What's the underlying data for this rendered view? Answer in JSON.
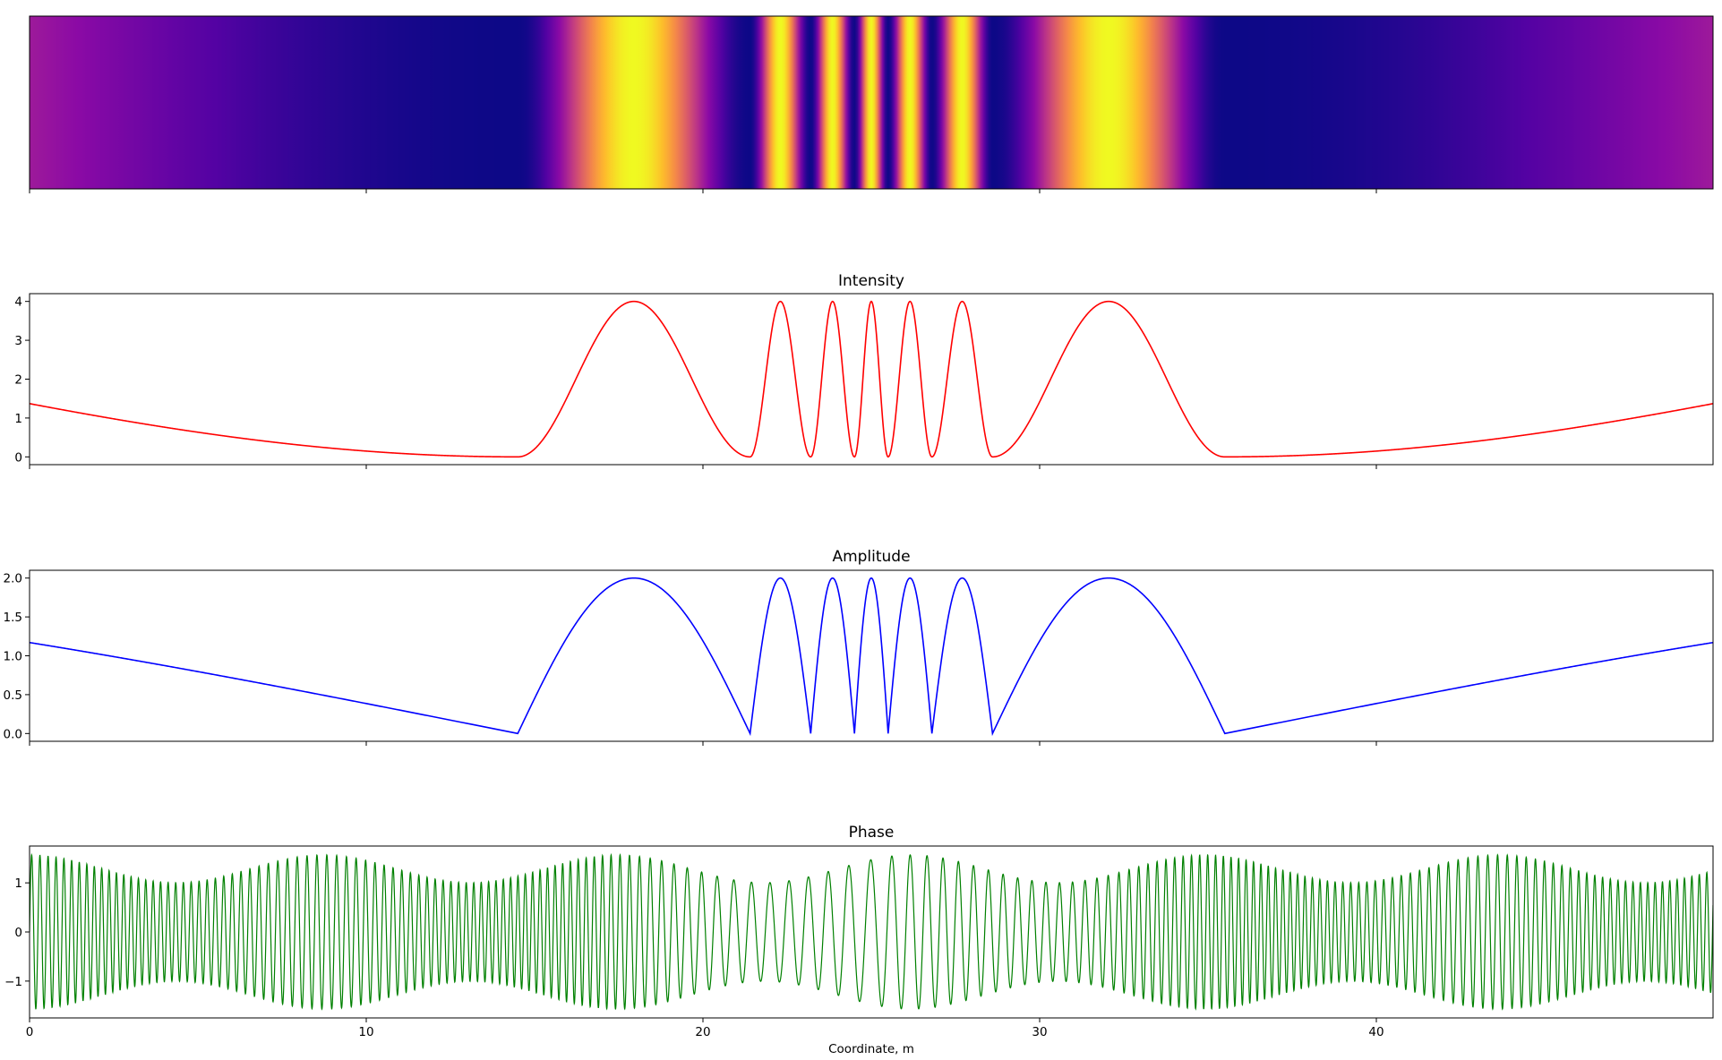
{
  "chart_data": [
    {
      "type": "heatmap",
      "title": "",
      "colormap": "plasma",
      "x_range": [
        0,
        50
      ],
      "description_of_values": "normalized intensity I/4 along x; mapped through plasma colormap",
      "x_ticks": [
        0,
        10,
        20,
        30,
        40
      ],
      "show_tick_labels": false
    },
    {
      "type": "line",
      "title": "Intensity",
      "color": "#ff0000",
      "xlim": [
        0,
        50
      ],
      "ylim": [
        -0.2,
        4.2
      ],
      "y_ticks": [
        0,
        1,
        2,
        3,
        4
      ],
      "x_ticks": [
        0,
        10,
        20,
        30,
        40
      ],
      "show_x_tick_labels": false,
      "peaks_x": [
        19.6,
        22.5,
        23.9,
        25.0,
        26.1,
        27.5,
        30.4
      ],
      "zeros_x": [
        14.5,
        21.4,
        23.2,
        24.5,
        25.5,
        26.8,
        28.6,
        35.5
      ],
      "y_at_edges": 1.37
    },
    {
      "type": "line",
      "title": "Amplitude",
      "color": "#0000ff",
      "xlim": [
        0,
        50
      ],
      "ylim": [
        -0.1,
        2.1
      ],
      "y_ticks": [
        0.0,
        0.5,
        1.0,
        1.5,
        2.0
      ],
      "y_tick_labels": [
        "0.0",
        "0.5",
        "1.0",
        "1.5",
        "2.0"
      ],
      "x_ticks": [
        0,
        10,
        20,
        30,
        40
      ],
      "show_x_tick_labels": false
    },
    {
      "type": "line",
      "title": "Phase",
      "color": "#008000",
      "xlim": [
        0,
        50
      ],
      "ylim": [
        -1.75,
        1.75
      ],
      "y_ticks": [
        -1,
        0,
        1
      ],
      "y_tick_labels": [
        "−1",
        "0",
        "1"
      ],
      "x_ticks": [
        0,
        10,
        20,
        30,
        40
      ],
      "x_tick_labels": [
        "0",
        "10",
        "20",
        "30",
        "40"
      ],
      "xlabel": "Coordinate, m",
      "y_extent": [
        -1.57,
        1.57
      ]
    }
  ]
}
